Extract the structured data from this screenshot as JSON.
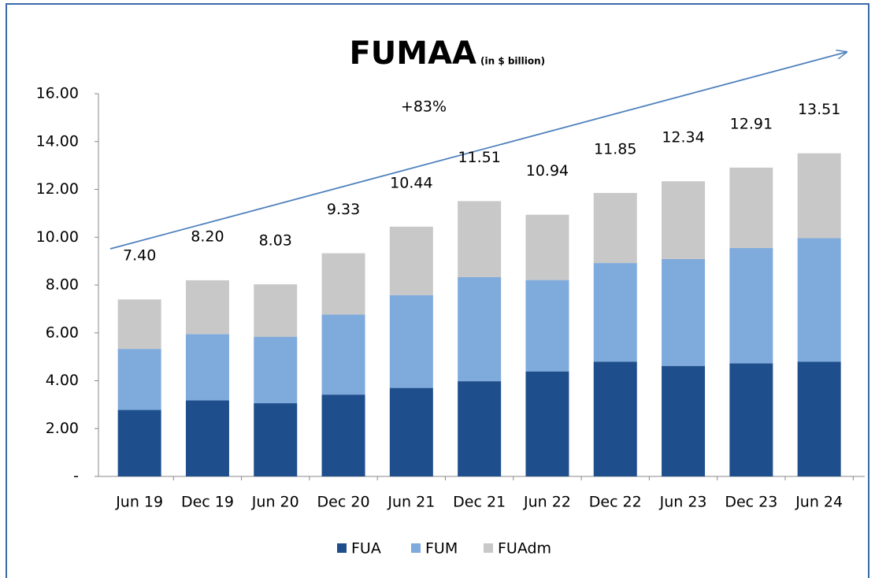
{
  "chart_data": {
    "type": "stacked_bar",
    "title": "FUMAA",
    "subtitle": "(in $ billion)",
    "annotation": "+83%",
    "categories": [
      "Jun 19",
      "Dec 19",
      "Jun 20",
      "Dec 20",
      "Jun 21",
      "Dec 21",
      "Jun 22",
      "Dec 22",
      "Jun 23",
      "Dec 23",
      "Jun 24"
    ],
    "series": [
      {
        "name": "FUA",
        "color": "#1f4e8c",
        "values": [
          2.78,
          3.18,
          3.06,
          3.42,
          3.7,
          3.98,
          4.39,
          4.8,
          4.62,
          4.73,
          4.8
        ]
      },
      {
        "name": "FUM",
        "color": "#7faadc",
        "values": [
          2.55,
          2.77,
          2.78,
          3.35,
          3.88,
          4.35,
          3.82,
          4.12,
          4.47,
          4.82,
          5.16
        ]
      },
      {
        "name": "FUAdm",
        "color": "#c8c8c8",
        "values": [
          2.07,
          2.25,
          2.19,
          2.56,
          2.86,
          3.18,
          2.73,
          2.93,
          3.25,
          3.36,
          3.55
        ]
      }
    ],
    "totals": {
      "values": [
        7.4,
        8.2,
        8.03,
        9.33,
        10.44,
        11.51,
        10.94,
        11.85,
        12.34,
        12.91,
        13.51
      ],
      "value_labels": [
        "7.40",
        "8.20",
        "8.03",
        "9.33",
        "10.44",
        "11.51",
        "10.94",
        "11.85",
        "12.34",
        "12.91",
        "13.51"
      ]
    },
    "ylim": [
      0,
      16
    ],
    "yticks": [
      {
        "value": 0,
        "label": "-"
      },
      {
        "value": 2,
        "label": "2.00"
      },
      {
        "value": 4,
        "label": "4.00"
      },
      {
        "value": 6,
        "label": "6.00"
      },
      {
        "value": 8,
        "label": "8.00"
      },
      {
        "value": 10,
        "label": "10.00"
      },
      {
        "value": 12,
        "label": "12.00"
      },
      {
        "value": 14,
        "label": "14.00"
      },
      {
        "value": 16,
        "label": "16.00"
      }
    ],
    "grid": false,
    "legend": "bottom"
  }
}
